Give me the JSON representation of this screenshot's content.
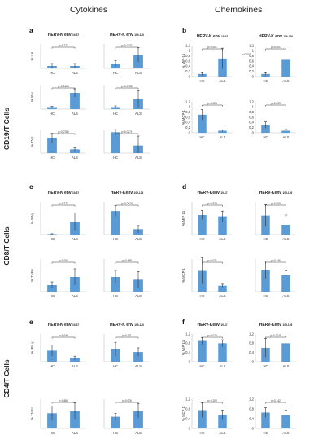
{
  "headers": {
    "cytokines": "Cytokines",
    "chemokines": "Chemokines"
  },
  "row_labels": {
    "cd19": "CD19/T Cells",
    "cd8": "CD8/T Cells",
    "cd4": "CD4/T Cells"
  },
  "panel_letters": {
    "a": "a",
    "b": "b",
    "c": "c",
    "d": "d",
    "e": "e",
    "f": "f"
  },
  "stray_pvalue": "p=0.001",
  "colors": {
    "bar": "#5b9bd5",
    "error": "#333333",
    "axis": "#bfbfbf"
  },
  "chart_data": [
    {
      "type": "bar",
      "panel": "a",
      "title": "HERV-K env",
      "title_sub": "19-37",
      "categories": [
        "HC",
        "ALS"
      ],
      "values": [
        0.04,
        0.04
      ],
      "errors": [
        0.04,
        0.04
      ],
      "ylabel": "% IL6",
      "pvalue": "p=0.277",
      "ylim": [
        0,
        0.4
      ],
      "yticks": []
    },
    {
      "type": "bar",
      "panel": "a",
      "title": "HERV-K env",
      "title_sub": "109-126",
      "categories": [
        "HC",
        "ALS"
      ],
      "values": [
        0.2,
        0.55
      ],
      "errors": [
        0.12,
        0.3
      ],
      "ylabel": "",
      "pvalue": "p=0.0137",
      "ylim": [
        0,
        1
      ],
      "yticks": []
    },
    {
      "type": "bar",
      "panel": "a",
      "title": "",
      "title_sub": "",
      "categories": [
        "HC",
        "ALS"
      ],
      "values": [
        0.05,
        0.4
      ],
      "errors": [
        0.02,
        0.1
      ],
      "ylabel": "% IFN",
      "pvalue": "p=0.0468",
      "ylim": [
        0,
        0.6
      ],
      "yticks": []
    },
    {
      "type": "bar",
      "panel": "a",
      "title": "",
      "title_sub": "",
      "categories": [
        "HC",
        "ALS"
      ],
      "values": [
        0.05,
        0.25
      ],
      "errors": [
        0.03,
        0.2
      ],
      "ylabel": "",
      "pvalue": "p=0.0785",
      "ylim": [
        0,
        0.6
      ],
      "yticks": []
    },
    {
      "type": "bar",
      "panel": "a",
      "title": "",
      "title_sub": "",
      "categories": [
        "HC",
        "ALS"
      ],
      "values": [
        0.4,
        0.1
      ],
      "errors": [
        0.12,
        0.04
      ],
      "ylabel": "% TNF",
      "pvalue": "p=0.0786",
      "ylim": [
        0,
        0.6
      ],
      "yticks": []
    },
    {
      "type": "bar",
      "panel": "a",
      "title": "",
      "title_sub": "",
      "categories": [
        "HC",
        "ALS"
      ],
      "values": [
        0.55,
        0.2
      ],
      "errors": [
        0.07,
        0.25
      ],
      "ylabel": "",
      "pvalue": "p=0.0271",
      "ylim": [
        0,
        0.6
      ],
      "yticks": []
    },
    {
      "type": "bar",
      "panel": "b",
      "title": "HERV-K env",
      "title_sub": "19-37",
      "categories": [
        "HC",
        "ALS"
      ],
      "values": [
        0.1,
        0.7
      ],
      "errors": [
        0.05,
        0.4
      ],
      "ylabel": "% MIP-1α",
      "pvalue": "p=0.001",
      "ylim": [
        0,
        1.2
      ],
      "yticks": [
        "1,2",
        "1",
        "0,8",
        "0,6",
        "0,4",
        "0,2",
        "0"
      ]
    },
    {
      "type": "bar",
      "panel": "b",
      "title": "HERV-K env",
      "title_sub": "109-126",
      "categories": [
        "HC",
        "ALS"
      ],
      "values": [
        0.1,
        0.65
      ],
      "errors": [
        0.05,
        0.35
      ],
      "ylabel": "",
      "pvalue": "p=0.001",
      "ylim": [
        0,
        1.2
      ],
      "yticks": [
        "1,2",
        "1",
        "0,8",
        "0,6",
        "0,4",
        "0,2",
        "0"
      ]
    },
    {
      "type": "bar",
      "panel": "b",
      "title": "",
      "title_sub": "",
      "categories": [
        "HC",
        "ALS"
      ],
      "values": [
        0.7,
        0.08
      ],
      "errors": [
        0.2,
        0.03
      ],
      "ylabel": "% MCP-1",
      "pvalue": "p=0.023",
      "ylim": [
        0,
        1.2
      ],
      "yticks": [
        "1,2",
        "1",
        "0,8",
        "0,6",
        "0,4",
        "0,2",
        "0"
      ]
    },
    {
      "type": "bar",
      "panel": "b",
      "title": "",
      "title_sub": "",
      "categories": [
        "HC",
        "ALS"
      ],
      "values": [
        0.3,
        0.08
      ],
      "errors": [
        0.12,
        0.05
      ],
      "ylabel": "",
      "pvalue": "p=0.039",
      "ylim": [
        0,
        1.2
      ],
      "yticks": [
        "1,2",
        "1",
        "0,8",
        "0,6",
        "0,4",
        "0,2",
        "0"
      ]
    },
    {
      "type": "bar",
      "panel": "c",
      "title": "HERV-K env",
      "title_sub": "19-37",
      "categories": [
        "HC",
        "ALS"
      ],
      "values": [
        0.02,
        0.6
      ],
      "errors": [
        0.02,
        0.4
      ],
      "ylabel": "% IFNγ",
      "pvalue": "p=0.277",
      "ylim": [
        0,
        1.5
      ],
      "yticks": []
    },
    {
      "type": "bar",
      "panel": "c",
      "title": "HERV-Kenv",
      "title_sub": "109-126",
      "categories": [
        "HC",
        "ALS"
      ],
      "values": [
        1.3,
        0.3
      ],
      "errors": [
        0.3,
        0.2
      ],
      "ylabel": "",
      "pvalue": "p=0.0023",
      "ylim": [
        0,
        1.8
      ],
      "yticks": []
    },
    {
      "type": "bar",
      "panel": "c",
      "title": "",
      "title_sub": "",
      "categories": [
        "HC",
        "ALS"
      ],
      "values": [
        0.12,
        0.27
      ],
      "errors": [
        0.06,
        0.15
      ],
      "ylabel": "% TNFα",
      "pvalue": "p=0.001",
      "ylim": [
        0,
        0.6
      ],
      "yticks": []
    },
    {
      "type": "bar",
      "panel": "c",
      "title": "",
      "title_sub": "",
      "categories": [
        "HC",
        "ALS"
      ],
      "values": [
        0.27,
        0.22
      ],
      "errors": [
        0.12,
        0.15
      ],
      "ylabel": "",
      "pvalue": "p=0.498",
      "ylim": [
        0,
        0.6
      ],
      "yticks": []
    },
    {
      "type": "bar",
      "panel": "d",
      "title": "HERV-Kenv",
      "title_sub": "19-37",
      "categories": [
        "HC",
        "ALS"
      ],
      "values": [
        3.0,
        2.8
      ],
      "errors": [
        0.7,
        0.8
      ],
      "ylabel": "% MIP 1α",
      "pvalue": "p=0.974",
      "ylim": [
        0,
        5
      ],
      "yticks": []
    },
    {
      "type": "bar",
      "panel": "d",
      "title": "HERV-Kenv",
      "title_sub": "109-126",
      "categories": [
        "HC",
        "ALS"
      ],
      "values": [
        3.5,
        1.8
      ],
      "errors": [
        2.0,
        1.8
      ],
      "ylabel": "",
      "pvalue": "p=0.000",
      "ylim": [
        0,
        6
      ],
      "yticks": []
    },
    {
      "type": "bar",
      "panel": "d",
      "title": "",
      "title_sub": "",
      "categories": [
        "HC",
        "ALS"
      ],
      "values": [
        1.4,
        0.4
      ],
      "errors": [
        0.9,
        0.1
      ],
      "ylabel": "% MCP 1",
      "pvalue": "p=0.021",
      "ylim": [
        0,
        2.2
      ],
      "yticks": []
    },
    {
      "type": "bar",
      "panel": "d",
      "title": "",
      "title_sub": "",
      "categories": [
        "HC",
        "ALS"
      ],
      "values": [
        4.0,
        3.0
      ],
      "errors": [
        1.6,
        0.8
      ],
      "ylabel": "",
      "pvalue": "p=0.146",
      "ylim": [
        0,
        6
      ],
      "yticks": []
    },
    {
      "type": "bar",
      "panel": "e",
      "title": "HERV-K env",
      "title_sub": "19-37",
      "categories": [
        "HC",
        "ALS"
      ],
      "values": [
        0.06,
        0.02
      ],
      "errors": [
        0.03,
        0.01
      ],
      "ylabel": "% IFN γ",
      "pvalue": "p=0.046",
      "ylim": [
        0,
        0.15
      ],
      "yticks": []
    },
    {
      "type": "bar",
      "panel": "e",
      "title": "HERV-K env",
      "title_sub": "109-126",
      "categories": [
        "HC",
        "ALS"
      ],
      "values": [
        0.09,
        0.07
      ],
      "errors": [
        0.05,
        0.03
      ],
      "ylabel": "",
      "pvalue": "p=0.211",
      "ylim": [
        0,
        0.2
      ],
      "yticks": []
    },
    {
      "type": "bar",
      "panel": "e",
      "title": "",
      "title_sub": "",
      "categories": [
        "HC",
        "ALS"
      ],
      "values": [
        0.13,
        0.15
      ],
      "errors": [
        0.06,
        0.07
      ],
      "ylabel": "% TNFα",
      "pvalue": "p=0.880",
      "ylim": [
        0,
        0.25
      ],
      "yticks": []
    },
    {
      "type": "bar",
      "panel": "e",
      "title": "",
      "title_sub": "",
      "categories": [
        "HC",
        "ALS"
      ],
      "values": [
        0.1,
        0.15
      ],
      "errors": [
        0.03,
        0.06
      ],
      "ylabel": "",
      "pvalue": "p=0.076",
      "ylim": [
        0,
        0.25
      ],
      "yticks": []
    },
    {
      "type": "bar",
      "panel": "f",
      "title": "HERV-Kenv",
      "title_sub": "19-37",
      "categories": [
        "HC",
        "ALS"
      ],
      "values": [
        0.9,
        0.8
      ],
      "errors": [
        0.15,
        0.15
      ],
      "ylabel": "% MIP 1α",
      "pvalue": "p=0.072",
      "ylim": [
        0,
        1.2
      ],
      "yticks": [
        "1,2",
        "0,8",
        "0,4",
        "0"
      ]
    },
    {
      "type": "bar",
      "panel": "f",
      "title": "HERV-Kenv",
      "title_sub": "109-126",
      "categories": [
        "HC",
        "ALS"
      ],
      "values": [
        0.6,
        0.8
      ],
      "errors": [
        0.4,
        0.3
      ],
      "ylabel": "",
      "pvalue": "p=0.0011",
      "ylim": [
        0,
        1.2
      ],
      "yticks": [
        "1,2",
        "0,8",
        "0,4",
        "0"
      ]
    },
    {
      "type": "bar",
      "panel": "f",
      "title": "",
      "title_sub": "",
      "categories": [
        "HC",
        "ALS"
      ],
      "values": [
        0.75,
        0.55
      ],
      "errors": [
        0.3,
        0.2
      ],
      "ylabel": "% MCP 1",
      "pvalue": "p=0.209",
      "ylim": [
        0,
        1.2
      ],
      "yticks": [
        "1,2",
        "0,8",
        "0,4",
        "0"
      ]
    },
    {
      "type": "bar",
      "panel": "f",
      "title": "",
      "title_sub": "",
      "categories": [
        "HC",
        "ALS"
      ],
      "values": [
        0.65,
        0.55
      ],
      "errors": [
        0.2,
        0.2
      ],
      "ylabel": "",
      "pvalue": "p=0.142",
      "ylim": [
        0,
        1.2
      ],
      "yticks": [
        "1,2",
        "0,8",
        "0,4",
        "0"
      ]
    }
  ]
}
